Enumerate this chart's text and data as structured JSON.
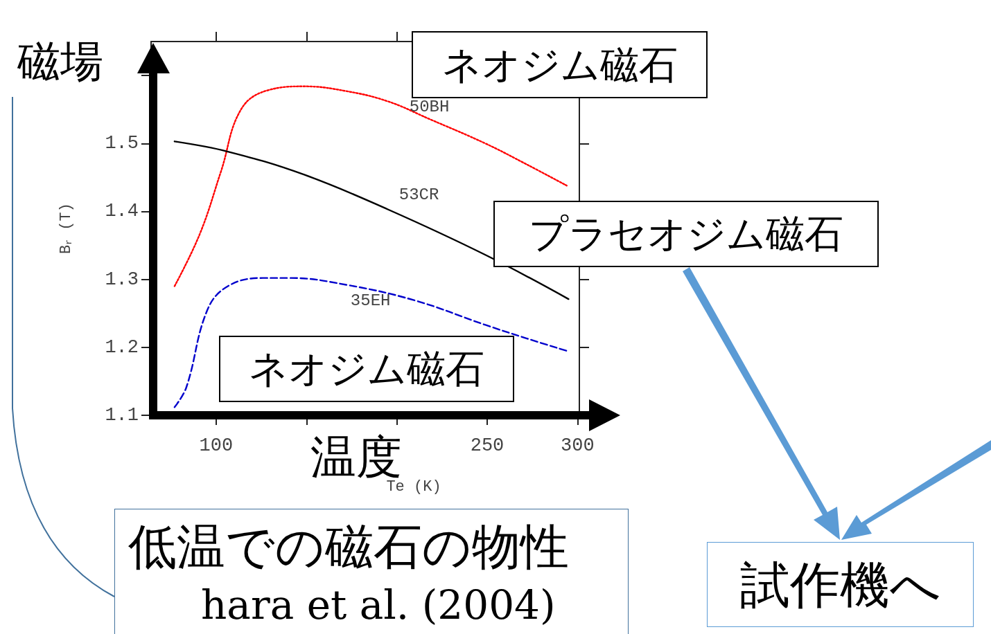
{
  "chart_data": {
    "type": "line",
    "xlabel": "Te (K)",
    "ylabel": "B$_{r}$ (T)",
    "xlim": [
      64,
      301
    ],
    "xticks": [
      100,
      {
        "value": 150,
        "label": null
      },
      {
        "value": 200,
        "label": null
      },
      250,
      300
    ],
    "ylim": [
      1.1,
      1.65
    ],
    "yticks": [
      1.1,
      1.2,
      1.3,
      1.4,
      1.5,
      {
        "value": 1.6,
        "label": null
      }
    ],
    "grid": false,
    "marker": "none",
    "series": [
      {
        "name": "50BH",
        "color": "#ff0000",
        "line_style": "dotted",
        "x": [
          77,
          91,
          102.7,
          114,
          129.6,
          148.8,
          172,
          195,
          218,
          249,
          272,
          294
        ],
        "values": [
          1.29,
          1.367,
          1.459,
          1.551,
          1.579,
          1.584,
          1.577,
          1.562,
          1.536,
          1.5,
          1.469,
          1.438
        ]
      },
      {
        "name": "53CR",
        "color": "#000000",
        "line_style": "solid",
        "x": [
          77,
          106.5,
          148.8,
          195,
          249,
          295
        ],
        "values": [
          1.503,
          1.488,
          1.454,
          1.403,
          1.336,
          1.271
        ]
      },
      {
        "name": "35EH",
        "color": "#0000cc",
        "line_style": "dashed",
        "x": [
          77,
          83.5,
          95,
          106.5,
          125.8,
          141,
          172,
          210,
          249,
          272,
          295
        ],
        "values": [
          1.112,
          1.141,
          1.254,
          1.29,
          1.302,
          1.302,
          1.292,
          1.269,
          1.233,
          1.213,
          1.194
        ]
      }
    ],
    "annotations": [
      "磁場",
      "ネオジム磁石",
      "プラセオジム磁石",
      "ネオジム磁石",
      "温度",
      "低温での磁石の物性",
      "hara et al. (2004)",
      "試作機へ"
    ]
  }
}
